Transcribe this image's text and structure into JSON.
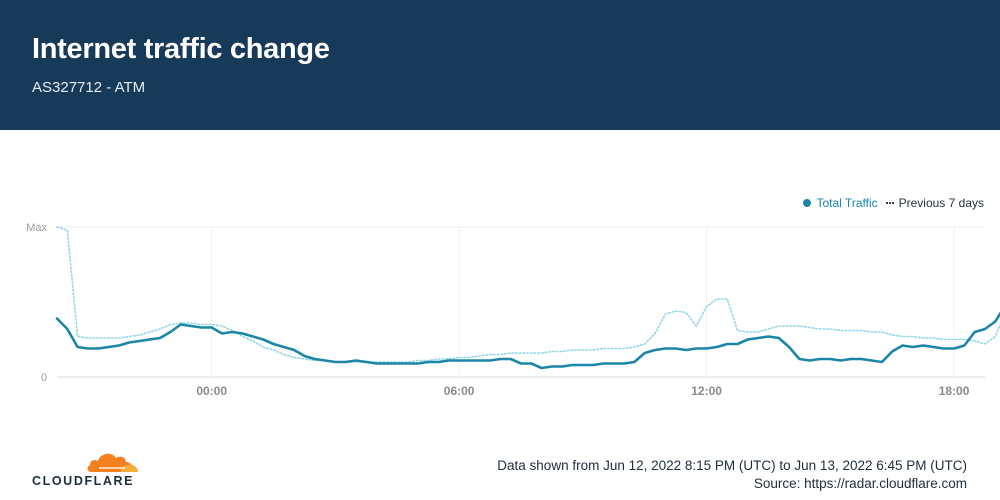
{
  "header": {
    "title": "Internet traffic change",
    "subtitle": "AS327712 - ATM"
  },
  "colors": {
    "header_bg": "#173a59",
    "total_traffic": "#1b86a8",
    "previous_7_days": "#8fd6ea"
  },
  "legend": {
    "total_label": "Total Traffic",
    "prev_label": "Previous 7 days"
  },
  "footer": {
    "logo_text": "CLOUDFLARE",
    "data_range": "Data shown from Jun 12, 2022 8:15 PM (UTC) to Jun 13, 2022 6:45 PM (UTC)",
    "source": "Source: https://radar.cloudflare.com"
  },
  "chart_data": {
    "type": "line",
    "title": "Internet traffic change",
    "ylim": [
      0,
      1
    ],
    "y_tick_labels": [
      "Max",
      "0"
    ],
    "x_tick_labels": [
      "00:00",
      "06:00",
      "12:00",
      "18:00"
    ],
    "x_tick_hours": [
      24,
      30,
      36,
      42
    ],
    "x_range_hours": [
      20.25,
      42.75
    ],
    "interval_minutes": 15,
    "grid": true,
    "legend_position": "top-right",
    "series": [
      {
        "name": "Total Traffic",
        "style": "solid",
        "values": [
          0.39,
          0.32,
          0.2,
          0.19,
          0.19,
          0.2,
          0.21,
          0.23,
          0.24,
          0.25,
          0.26,
          0.3,
          0.35,
          0.34,
          0.33,
          0.33,
          0.29,
          0.3,
          0.29,
          0.27,
          0.25,
          0.22,
          0.2,
          0.18,
          0.14,
          0.12,
          0.11,
          0.1,
          0.1,
          0.11,
          0.1,
          0.09,
          0.09,
          0.09,
          0.09,
          0.09,
          0.1,
          0.1,
          0.11,
          0.11,
          0.11,
          0.11,
          0.11,
          0.12,
          0.12,
          0.09,
          0.09,
          0.06,
          0.07,
          0.07,
          0.08,
          0.08,
          0.08,
          0.09,
          0.09,
          0.09,
          0.1,
          0.16,
          0.18,
          0.19,
          0.19,
          0.18,
          0.19,
          0.19,
          0.2,
          0.22,
          0.22,
          0.25,
          0.26,
          0.27,
          0.26,
          0.2,
          0.12,
          0.11,
          0.12,
          0.12,
          0.11,
          0.12,
          0.12,
          0.11,
          0.1,
          0.17,
          0.21,
          0.2,
          0.21,
          0.2,
          0.19,
          0.19,
          0.21,
          0.3,
          0.32,
          0.37,
          0.48
        ]
      },
      {
        "name": "Previous 7 days",
        "style": "dotted",
        "values": [
          1.0,
          0.98,
          0.27,
          0.26,
          0.26,
          0.26,
          0.26,
          0.27,
          0.28,
          0.3,
          0.32,
          0.35,
          0.36,
          0.36,
          0.35,
          0.35,
          0.34,
          0.31,
          0.27,
          0.24,
          0.2,
          0.18,
          0.15,
          0.13,
          0.12,
          0.11,
          0.11,
          0.1,
          0.1,
          0.1,
          0.1,
          0.1,
          0.1,
          0.1,
          0.1,
          0.11,
          0.11,
          0.12,
          0.12,
          0.13,
          0.13,
          0.14,
          0.15,
          0.15,
          0.16,
          0.16,
          0.16,
          0.16,
          0.17,
          0.17,
          0.18,
          0.18,
          0.18,
          0.19,
          0.19,
          0.19,
          0.2,
          0.22,
          0.29,
          0.42,
          0.44,
          0.43,
          0.34,
          0.47,
          0.52,
          0.52,
          0.31,
          0.3,
          0.3,
          0.32,
          0.34,
          0.34,
          0.34,
          0.33,
          0.32,
          0.32,
          0.31,
          0.31,
          0.31,
          0.3,
          0.3,
          0.28,
          0.27,
          0.27,
          0.26,
          0.26,
          0.25,
          0.25,
          0.25,
          0.24,
          0.22,
          0.27,
          0.44
        ]
      }
    ]
  }
}
